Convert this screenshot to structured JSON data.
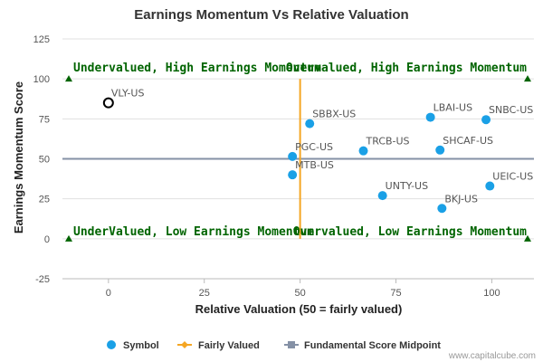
{
  "colors": {
    "point": "#1aa0e6",
    "highlight_stroke": "#000000",
    "fair": "#f5a623",
    "midpoint": "#8591a6",
    "quadrant_text": "#006400",
    "grid": "#e0e0e0"
  },
  "chart_data": {
    "type": "scatter",
    "title": "Earnings Momentum Vs Relative Valuation",
    "xlabel": "Relative Valuation (50 = fairly valued)",
    "ylabel": "Earnings Momentum Score",
    "xlim": [
      -12,
      111
    ],
    "ylim": [
      -25,
      125
    ],
    "xticks": [
      0,
      25,
      50,
      75,
      100
    ],
    "yticks": [
      -25,
      0,
      25,
      50,
      75,
      100,
      125
    ],
    "fairly_valued_x": 50,
    "midpoint_y": 50,
    "points": [
      {
        "symbol": "VLY-US",
        "x": 0,
        "y": 85,
        "highlight": true
      },
      {
        "symbol": "SBBX-US",
        "x": 52.5,
        "y": 72,
        "highlight": false
      },
      {
        "symbol": "LBAI-US",
        "x": 84,
        "y": 76,
        "highlight": false
      },
      {
        "symbol": "SNBC-US",
        "x": 98.5,
        "y": 74.5,
        "highlight": false
      },
      {
        "symbol": "PGC-US",
        "x": 48,
        "y": 51.5,
        "highlight": false
      },
      {
        "symbol": "TRCB-US",
        "x": 66.5,
        "y": 55,
        "highlight": false
      },
      {
        "symbol": "SHCAF-US",
        "x": 86.5,
        "y": 55.5,
        "highlight": false
      },
      {
        "symbol": "MTB-US",
        "x": 48,
        "y": 40,
        "highlight": false
      },
      {
        "symbol": "UNTY-US",
        "x": 71.5,
        "y": 27,
        "highlight": false
      },
      {
        "symbol": "UEIC-US",
        "x": 99.5,
        "y": 33,
        "highlight": false
      },
      {
        "symbol": "BKJ-US",
        "x": 87,
        "y": 19,
        "highlight": false
      }
    ],
    "quadrant_labels": {
      "top_left": "Undervalued, High Earnings Momentum",
      "top_right": "Overvalued, High Earnings Momentum",
      "bottom_left": "UnderValued, Low Earnings Momentum",
      "bottom_right": "Overvalued, Low Earnings Momentum"
    },
    "legend": [
      {
        "key": "symbol",
        "label": "Symbol"
      },
      {
        "key": "fair",
        "label": "Fairly Valued"
      },
      {
        "key": "midpoint",
        "label": "Fundamental Score Midpoint"
      }
    ],
    "credit": "www.capitalcube.com"
  }
}
